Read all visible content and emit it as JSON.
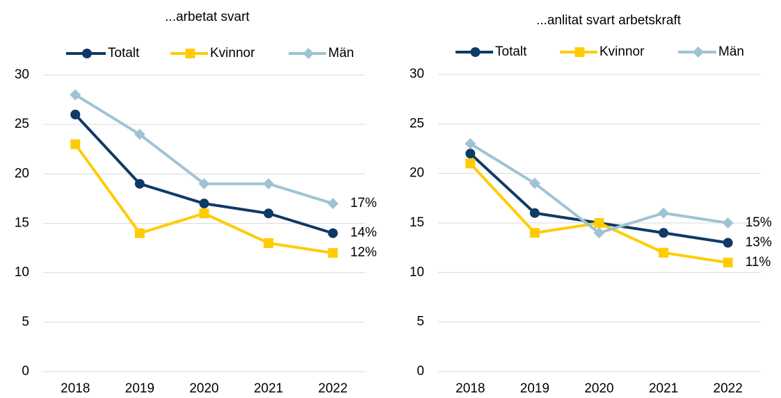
{
  "chart_data": [
    {
      "type": "line",
      "title": "...arbetat svart",
      "categories": [
        "2018",
        "2019",
        "2020",
        "2021",
        "2022"
      ],
      "series": [
        {
          "name": "Totalt",
          "color": "#0e3a66",
          "marker": "circle",
          "values": [
            26,
            19,
            17,
            16,
            14
          ],
          "value_labels": [
            null,
            null,
            null,
            null,
            "14%"
          ]
        },
        {
          "name": "Kvinnor",
          "color": "#ffcc00",
          "marker": "square",
          "values": [
            23,
            14,
            16,
            13,
            12
          ],
          "value_labels": [
            null,
            null,
            null,
            null,
            "12%"
          ]
        },
        {
          "name": "Män",
          "color": "#9fc3d4",
          "marker": "diamond",
          "values": [
            28,
            24,
            19,
            19,
            17
          ],
          "value_labels": [
            null,
            null,
            null,
            null,
            "17%"
          ]
        }
      ],
      "ylim": [
        0,
        30
      ],
      "yticks": [
        0,
        5,
        10,
        15,
        20,
        25,
        30
      ],
      "grid": true,
      "legend": "top"
    },
    {
      "type": "line",
      "title": "...anlitat svart arbetskraft",
      "categories": [
        "2018",
        "2019",
        "2020",
        "2021",
        "2022"
      ],
      "series": [
        {
          "name": "Totalt",
          "color": "#0e3a66",
          "marker": "circle",
          "values": [
            22,
            16,
            15,
            14,
            13
          ],
          "value_labels": [
            null,
            null,
            null,
            null,
            "13%"
          ]
        },
        {
          "name": "Kvinnor",
          "color": "#ffcc00",
          "marker": "square",
          "values": [
            21,
            14,
            15,
            12,
            11
          ],
          "value_labels": [
            null,
            null,
            null,
            null,
            "11%"
          ]
        },
        {
          "name": "Män",
          "color": "#9fc3d4",
          "marker": "diamond",
          "values": [
            23,
            19,
            14,
            16,
            15
          ],
          "value_labels": [
            null,
            null,
            null,
            null,
            "15%"
          ]
        }
      ],
      "ylim": [
        0,
        30
      ],
      "yticks": [
        0,
        5,
        10,
        15,
        20,
        25,
        30
      ],
      "grid": true,
      "legend": "top"
    }
  ]
}
